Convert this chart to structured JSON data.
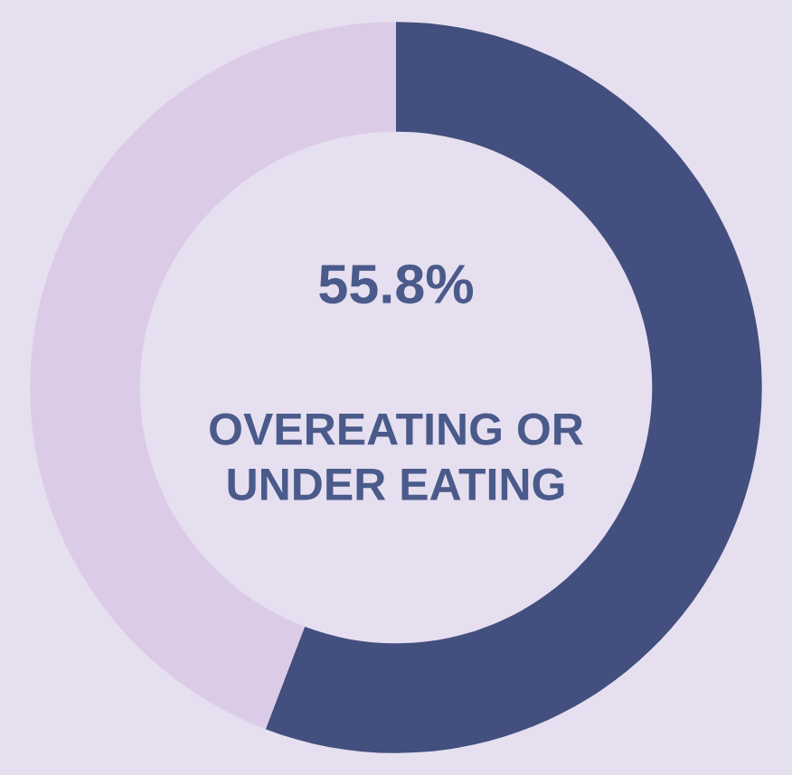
{
  "chart_data": {
    "type": "donut",
    "categories": [
      "OVEREATING OR UNDER EATING",
      null
    ],
    "values": [
      55.8,
      44.2
    ],
    "colors": [
      "#434f7e",
      "#dccbe6"
    ],
    "value_labels": [
      "55.8%",
      null
    ],
    "legend": false
  }
}
